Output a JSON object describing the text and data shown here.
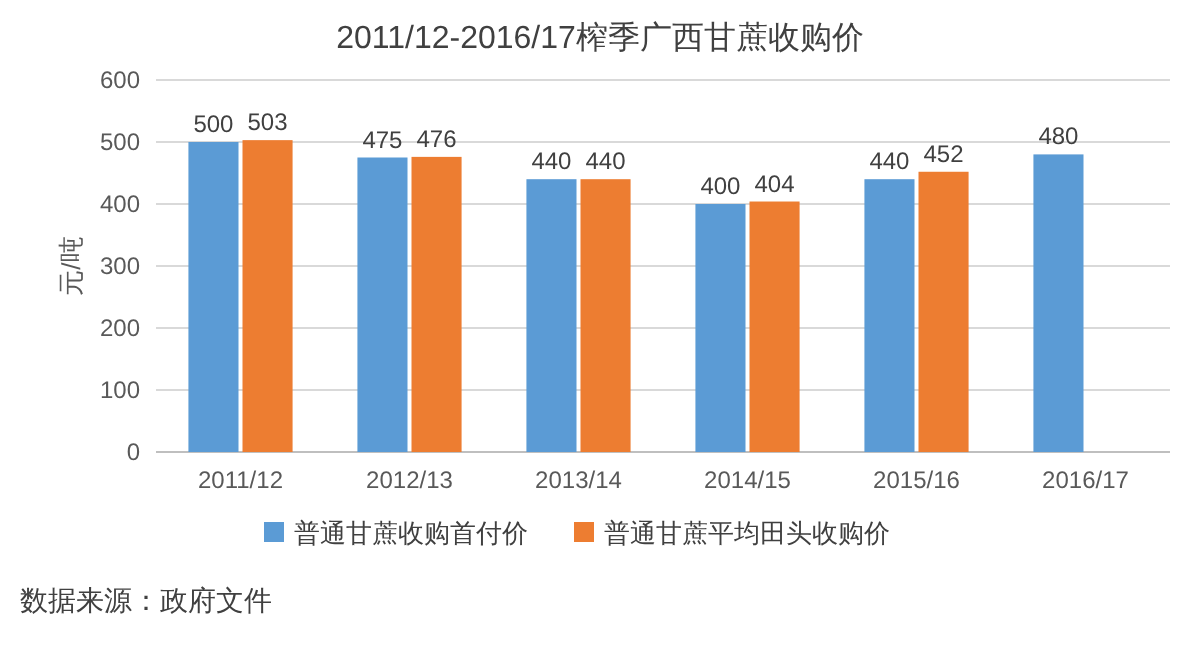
{
  "chart_data": {
    "type": "bar",
    "title": "2011/12-2016/17榨季广西甘蔗收购价",
    "ylabel": "元/吨",
    "categories": [
      "2011/12",
      "2012/13",
      "2013/14",
      "2014/15",
      "2015/16",
      "2016/17"
    ],
    "series": [
      {
        "name": "普通甘蔗收购首付价",
        "color": "#5b9bd5",
        "values": [
          500,
          475,
          440,
          400,
          440,
          480
        ]
      },
      {
        "name": "普通甘蔗平均田头收购价",
        "color": "#ed7d31",
        "values": [
          503,
          476,
          440,
          404,
          452,
          null
        ]
      }
    ],
    "ylim": [
      0,
      600
    ],
    "yticks": [
      0,
      100,
      200,
      300,
      400,
      500,
      600
    ],
    "grid": "y",
    "legend": "bottom",
    "data_labels": true,
    "annotations": [
      "数据来源：政府文件"
    ]
  }
}
